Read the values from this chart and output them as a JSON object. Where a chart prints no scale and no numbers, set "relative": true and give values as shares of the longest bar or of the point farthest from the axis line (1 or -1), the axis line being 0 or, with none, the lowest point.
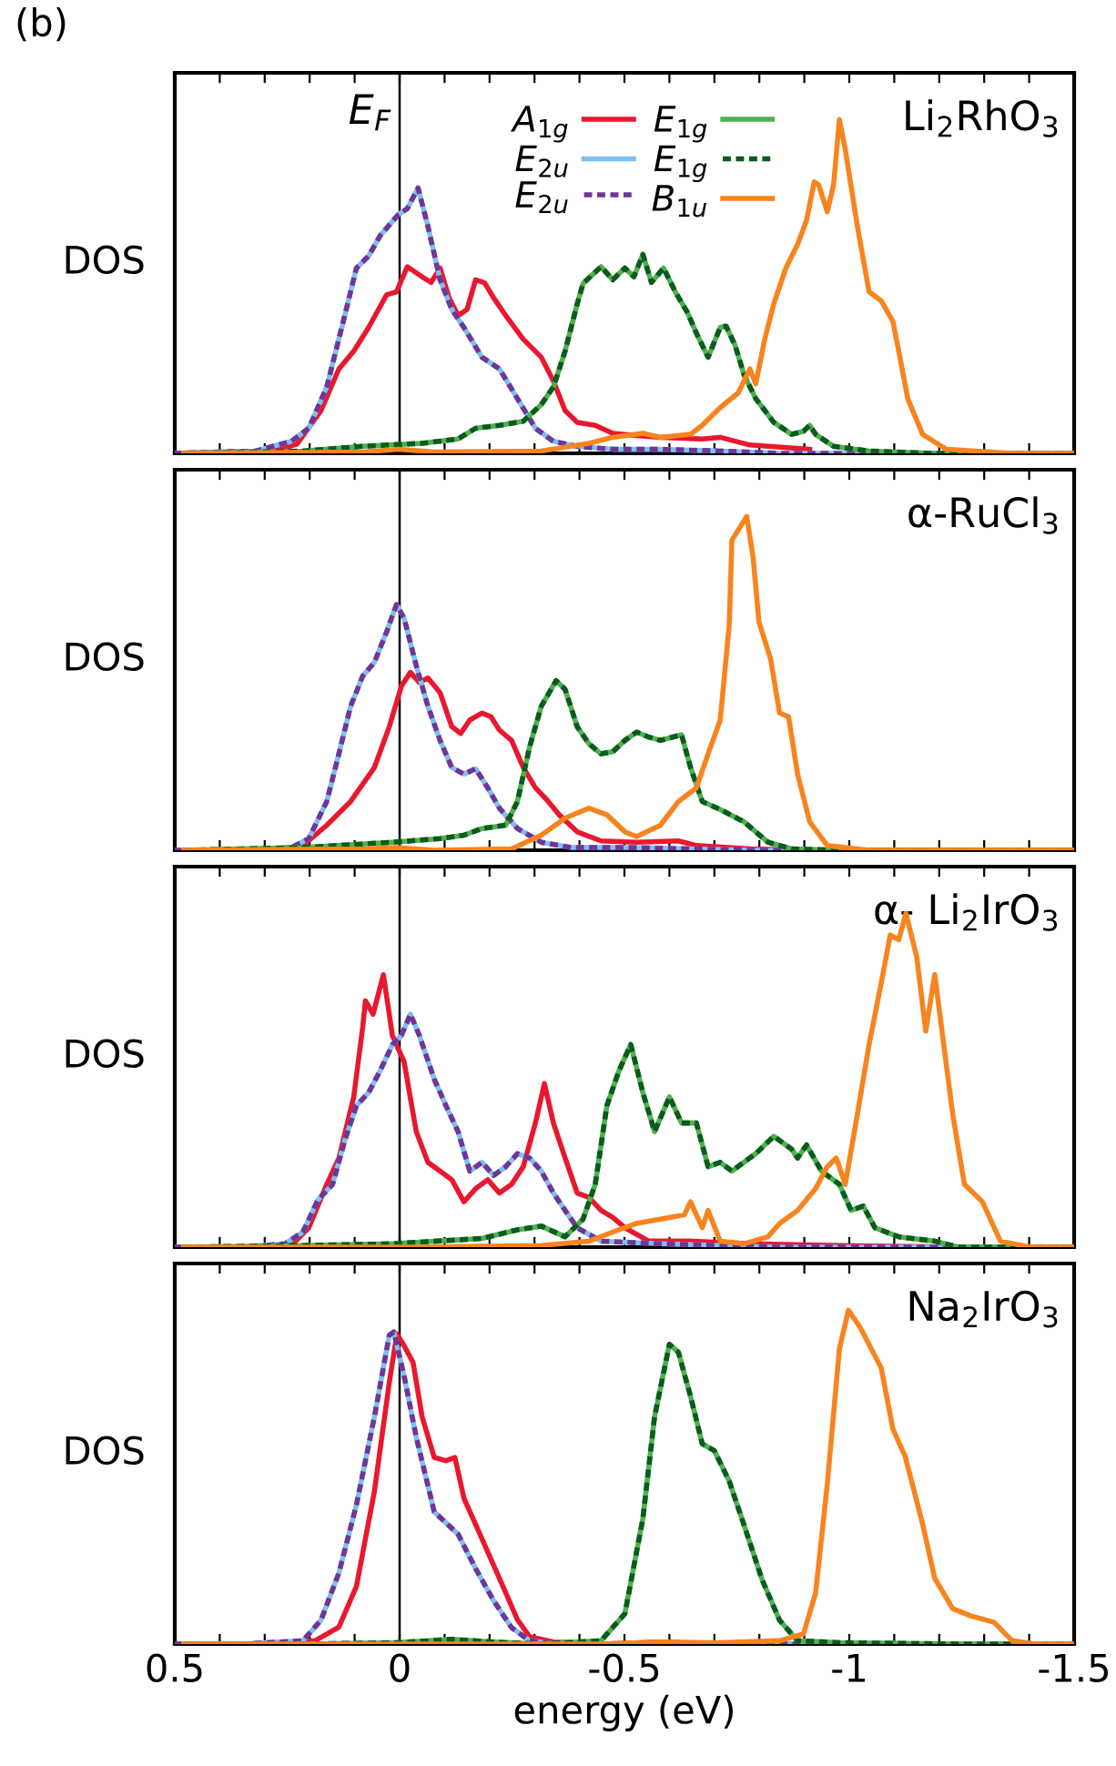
{
  "chart_data": [
    {
      "type": "line",
      "relative": true,
      "ylabel": "DOS",
      "annotations": [
        "(b)"
      ],
      "subtitle": "Li$_{2}$RhO$_{3}$",
      "legend": "top",
      "tick_labels": false,
      "xlim": [
        0.5,
        -1.5
      ],
      "xticks": [
        0.5,
        {
          "value": 0.4,
          "label": null
        },
        {
          "value": 0.3,
          "label": null
        },
        {
          "value": 0.2,
          "label": null
        },
        {
          "value": 0.1,
          "label": null
        },
        0,
        {
          "value": -0.1,
          "label": null
        },
        {
          "value": -0.2,
          "label": null
        },
        {
          "value": -0.3,
          "label": null
        },
        {
          "value": -0.4,
          "label": null
        },
        -0.5,
        {
          "value": -0.6,
          "label": null
        },
        {
          "value": -0.7,
          "label": null
        },
        {
          "value": -0.8,
          "label": null
        },
        {
          "value": -0.9,
          "label": null
        },
        -1,
        {
          "value": -1.1,
          "label": null
        },
        {
          "value": -1.2,
          "label": null
        },
        {
          "value": -1.3,
          "label": null
        },
        {
          "value": -1.4,
          "label": null
        },
        -1.5
      ],
      "ref_lines": [
        {
          "axis": "x",
          "value": 0,
          "label": "E$_{F}$",
          "color": "#000000"
        }
      ],
      "series": [
        {
          "name": "A$_{1g}$",
          "color": "#e8182e",
          "line_style": "solid",
          "x": [
            0.5,
            0.281,
            0.228,
            0.175,
            0.135,
            0.102,
            0.069,
            0.029,
            0.007,
            -0.017,
            -0.05,
            -0.07,
            -0.09,
            -0.11,
            -0.13,
            -0.15,
            -0.169,
            -0.189,
            -0.209,
            -0.236,
            -0.275,
            -0.315,
            -0.342,
            -0.368,
            -0.395,
            -0.435,
            -0.474,
            -0.527,
            -0.58,
            -0.673,
            -0.713,
            -0.779,
            -0.912
          ],
          "values": [
            0,
            0.007,
            0.028,
            0.128,
            0.253,
            0.306,
            0.377,
            0.475,
            0.484,
            0.559,
            0.529,
            0.512,
            0.555,
            0.466,
            0.413,
            0.431,
            0.52,
            0.511,
            0.466,
            0.413,
            0.342,
            0.288,
            0.217,
            0.128,
            0.093,
            0.084,
            0.06,
            0.053,
            0.048,
            0.043,
            0.048,
            0.025,
            0.012
          ]
        },
        {
          "name": "E$_{2u}$",
          "color": "#80bfea",
          "line_style": "solid",
          "x": [
            0.5,
            0.32,
            0.241,
            0.202,
            0.162,
            0.122,
            0.096,
            0.069,
            0.043,
            0.003,
            -0.017,
            -0.041,
            -0.063,
            -0.09,
            -0.116,
            -0.143,
            -0.183,
            -0.222,
            -0.262,
            -0.302,
            -0.342,
            -0.395,
            -0.474,
            -0.58,
            -0.713,
            -0.845,
            -1.5
          ],
          "values": [
            0,
            0.007,
            0.036,
            0.075,
            0.199,
            0.413,
            0.555,
            0.591,
            0.653,
            0.715,
            0.733,
            0.795,
            0.68,
            0.52,
            0.431,
            0.377,
            0.288,
            0.253,
            0.164,
            0.075,
            0.036,
            0.021,
            0.012,
            0.012,
            0.007,
            0,
            0
          ]
        },
        {
          "name": "E$_{2u}$",
          "color": "#6f3598",
          "line_style": "dotted",
          "x": [
            0.5,
            0.32,
            0.241,
            0.202,
            0.162,
            0.122,
            0.096,
            0.069,
            0.043,
            0.003,
            -0.017,
            -0.041,
            -0.063,
            -0.09,
            -0.116,
            -0.143,
            -0.183,
            -0.222,
            -0.262,
            -0.302,
            -0.342,
            -0.395,
            -0.474,
            -0.58,
            -0.713,
            -0.845,
            -1.5
          ],
          "values": [
            0,
            0.007,
            0.036,
            0.075,
            0.199,
            0.413,
            0.555,
            0.591,
            0.653,
            0.715,
            0.733,
            0.795,
            0.68,
            0.52,
            0.431,
            0.377,
            0.288,
            0.253,
            0.164,
            0.075,
            0.036,
            0.021,
            0.012,
            0.012,
            0.007,
            0,
            0
          ]
        },
        {
          "name": "E$_{1g}$",
          "color": "#4fb04f",
          "line_style": "solid",
          "x": [
            0.48,
            0.215,
            0.082,
            -0.05,
            -0.13,
            -0.169,
            -0.222,
            -0.275,
            -0.315,
            -0.342,
            -0.368,
            -0.395,
            -0.408,
            -0.448,
            -0.474,
            -0.501,
            -0.521,
            -0.541,
            -0.56,
            -0.587,
            -0.613,
            -0.64,
            -0.66,
            -0.686,
            -0.713,
            -0.726,
            -0.746,
            -0.766,
            -0.792,
            -0.832,
            -0.872,
            -0.898,
            -0.912,
            -0.925,
            -0.965,
            -1.044,
            -1.177,
            -1.5
          ],
          "values": [
            0,
            0.007,
            0.021,
            0.03,
            0.043,
            0.075,
            0.084,
            0.096,
            0.146,
            0.199,
            0.306,
            0.448,
            0.509,
            0.559,
            0.52,
            0.555,
            0.529,
            0.596,
            0.512,
            0.555,
            0.484,
            0.422,
            0.36,
            0.288,
            0.377,
            0.381,
            0.324,
            0.235,
            0.164,
            0.093,
            0.057,
            0.066,
            0.084,
            0.057,
            0.021,
            0.007,
            0,
            0
          ]
        },
        {
          "name": "E$_{1g}$",
          "color": "#0b5a1e",
          "line_style": "dotted",
          "x": [
            0.48,
            0.215,
            0.082,
            -0.05,
            -0.13,
            -0.169,
            -0.222,
            -0.275,
            -0.315,
            -0.342,
            -0.368,
            -0.395,
            -0.408,
            -0.448,
            -0.474,
            -0.501,
            -0.521,
            -0.541,
            -0.56,
            -0.587,
            -0.613,
            -0.64,
            -0.66,
            -0.686,
            -0.713,
            -0.726,
            -0.746,
            -0.766,
            -0.792,
            -0.832,
            -0.872,
            -0.898,
            -0.912,
            -0.925,
            -0.965,
            -1.044,
            -1.177,
            -1.5
          ],
          "values": [
            0,
            0.007,
            0.021,
            0.03,
            0.043,
            0.075,
            0.084,
            0.096,
            0.146,
            0.199,
            0.306,
            0.448,
            0.509,
            0.559,
            0.52,
            0.555,
            0.529,
            0.596,
            0.512,
            0.555,
            0.484,
            0.422,
            0.36,
            0.288,
            0.377,
            0.381,
            0.324,
            0.235,
            0.164,
            0.093,
            0.057,
            0.066,
            0.084,
            0.057,
            0.021,
            0.007,
            0,
            0
          ]
        },
        {
          "name": "B$_{1u}$",
          "color": "#f7841f",
          "line_style": "solid",
          "x": [
            0.48,
            0.082,
            0.003,
            -0.077,
            -0.315,
            -0.421,
            -0.474,
            -0.541,
            -0.58,
            -0.647,
            -0.673,
            -0.713,
            -0.753,
            -0.779,
            -0.792,
            -0.812,
            -0.832,
            -0.859,
            -0.885,
            -0.905,
            -0.922,
            -0.932,
            -0.951,
            -0.965,
            -0.978,
            -0.991,
            -1.018,
            -1.044,
            -1.071,
            -1.097,
            -1.11,
            -1.13,
            -1.163,
            -1.216,
            -1.362,
            -1.5
          ],
          "values": [
            0,
            0.004,
            0.012,
            0.004,
            0.007,
            0.03,
            0.048,
            0.06,
            0.048,
            0.057,
            0.084,
            0.137,
            0.181,
            0.253,
            0.208,
            0.342,
            0.448,
            0.555,
            0.626,
            0.698,
            0.813,
            0.804,
            0.724,
            0.804,
            1.0,
            0.911,
            0.68,
            0.484,
            0.457,
            0.395,
            0.306,
            0.164,
            0.057,
            0.012,
            0,
            0
          ]
        }
      ]
    },
    {
      "type": "line",
      "relative": true,
      "ylabel": "DOS",
      "subtitle": "α-RuCl$_{3}$",
      "tick_labels": false,
      "xlim": [
        0.5,
        -1.5
      ],
      "xticks": [
        0.5,
        {
          "value": 0.4,
          "label": null
        },
        {
          "value": 0.3,
          "label": null
        },
        {
          "value": 0.2,
          "label": null
        },
        {
          "value": 0.1,
          "label": null
        },
        0,
        {
          "value": -0.1,
          "label": null
        },
        {
          "value": -0.2,
          "label": null
        },
        {
          "value": -0.3,
          "label": null
        },
        {
          "value": -0.4,
          "label": null
        },
        -0.5,
        {
          "value": -0.6,
          "label": null
        },
        {
          "value": -0.7,
          "label": null
        },
        {
          "value": -0.8,
          "label": null
        },
        {
          "value": -0.9,
          "label": null
        },
        -1,
        {
          "value": -1.1,
          "label": null
        },
        {
          "value": -1.2,
          "label": null
        },
        {
          "value": -1.3,
          "label": null
        },
        {
          "value": -1.4,
          "label": null
        },
        -1.5
      ],
      "ref_lines": [
        {
          "axis": "x",
          "value": 0,
          "color": "#000000"
        }
      ],
      "series": [
        {
          "color": "#e8182e",
          "line_style": "solid",
          "x": [
            0.5,
            0.281,
            0.215,
            0.162,
            0.109,
            0.056,
            0.023,
            -0.004,
            -0.024,
            -0.044,
            -0.063,
            -0.09,
            -0.116,
            -0.136,
            -0.156,
            -0.183,
            -0.203,
            -0.222,
            -0.249,
            -0.275,
            -0.302,
            -0.328,
            -0.355,
            -0.395,
            -0.448,
            -0.527,
            -0.62,
            -0.66,
            -0.779,
            -0.912,
            -1.5
          ],
          "values": [
            0,
            0,
            0.014,
            0.075,
            0.146,
            0.248,
            0.37,
            0.492,
            0.533,
            0.502,
            0.516,
            0.472,
            0.37,
            0.35,
            0.39,
            0.411,
            0.4,
            0.36,
            0.329,
            0.248,
            0.187,
            0.15,
            0.106,
            0.055,
            0.028,
            0.024,
            0.028,
            0.014,
            0.004,
            0,
            0
          ]
        },
        {
          "color": "#80bfea",
          "line_style": "solid",
          "x": [
            0.5,
            0.347,
            0.241,
            0.202,
            0.162,
            0.135,
            0.109,
            0.082,
            0.056,
            0.029,
            0.007,
            -0.01,
            -0.037,
            -0.063,
            -0.09,
            -0.116,
            -0.143,
            -0.169,
            -0.196,
            -0.222,
            -0.262,
            -0.315,
            -0.381,
            -0.514,
            -0.647,
            -0.779,
            -1.5
          ],
          "values": [
            0,
            0,
            0.008,
            0.035,
            0.146,
            0.289,
            0.431,
            0.522,
            0.563,
            0.654,
            0.736,
            0.695,
            0.553,
            0.431,
            0.329,
            0.248,
            0.228,
            0.244,
            0.187,
            0.126,
            0.065,
            0.024,
            0.008,
            0.008,
            0.004,
            0,
            0
          ]
        },
        {
          "color": "#6f3598",
          "line_style": "dotted",
          "x": [
            0.5,
            0.347,
            0.241,
            0.202,
            0.162,
            0.135,
            0.109,
            0.082,
            0.056,
            0.029,
            0.007,
            -0.01,
            -0.037,
            -0.063,
            -0.09,
            -0.116,
            -0.143,
            -0.169,
            -0.196,
            -0.222,
            -0.262,
            -0.315,
            -0.381,
            -0.514,
            -0.647,
            -0.779,
            -1.5
          ],
          "values": [
            0,
            0,
            0.008,
            0.035,
            0.146,
            0.289,
            0.431,
            0.522,
            0.563,
            0.654,
            0.736,
            0.695,
            0.553,
            0.431,
            0.329,
            0.248,
            0.228,
            0.244,
            0.187,
            0.126,
            0.065,
            0.024,
            0.008,
            0.008,
            0.004,
            0,
            0
          ]
        },
        {
          "color": "#4fb04f",
          "line_style": "solid",
          "x": [
            0.48,
            0.215,
            0.016,
            -0.09,
            -0.143,
            -0.183,
            -0.236,
            -0.262,
            -0.289,
            -0.315,
            -0.348,
            -0.368,
            -0.395,
            -0.421,
            -0.448,
            -0.474,
            -0.501,
            -0.527,
            -0.554,
            -0.58,
            -0.607,
            -0.627,
            -0.647,
            -0.673,
            -0.713,
            -0.766,
            -0.819,
            -0.872,
            -0.978,
            -1.5
          ],
          "values": [
            0,
            0.008,
            0.024,
            0.035,
            0.045,
            0.065,
            0.075,
            0.146,
            0.309,
            0.431,
            0.508,
            0.482,
            0.37,
            0.319,
            0.289,
            0.295,
            0.329,
            0.354,
            0.339,
            0.329,
            0.339,
            0.346,
            0.248,
            0.146,
            0.122,
            0.085,
            0.024,
            0.004,
            0,
            0
          ]
        },
        {
          "color": "#0b5a1e",
          "line_style": "dotted",
          "x": [
            0.48,
            0.215,
            0.016,
            -0.09,
            -0.143,
            -0.183,
            -0.236,
            -0.262,
            -0.289,
            -0.315,
            -0.348,
            -0.368,
            -0.395,
            -0.421,
            -0.448,
            -0.474,
            -0.501,
            -0.527,
            -0.554,
            -0.58,
            -0.607,
            -0.627,
            -0.647,
            -0.673,
            -0.713,
            -0.766,
            -0.819,
            -0.872,
            -0.978,
            -1.5
          ],
          "values": [
            0,
            0.008,
            0.024,
            0.035,
            0.045,
            0.065,
            0.075,
            0.146,
            0.309,
            0.431,
            0.508,
            0.482,
            0.37,
            0.319,
            0.289,
            0.295,
            0.329,
            0.354,
            0.339,
            0.329,
            0.339,
            0.346,
            0.248,
            0.146,
            0.122,
            0.085,
            0.024,
            0.004,
            0,
            0
          ]
        },
        {
          "color": "#f7841f",
          "line_style": "solid",
          "x": [
            0.48,
            0.082,
            0.007,
            -0.077,
            -0.249,
            -0.315,
            -0.368,
            -0.421,
            -0.461,
            -0.501,
            -0.527,
            -0.58,
            -0.62,
            -0.66,
            -0.686,
            -0.713,
            -0.733,
            -0.739,
            -0.772,
            -0.786,
            -0.799,
            -0.825,
            -0.845,
            -0.865,
            -0.885,
            -0.912,
            -0.951,
            -1.044,
            -1.5
          ],
          "values": [
            0,
            0.004,
            0.008,
            0,
            0.004,
            0.045,
            0.096,
            0.126,
            0.106,
            0.055,
            0.041,
            0.075,
            0.146,
            0.187,
            0.289,
            0.39,
            0.675,
            0.929,
            1.0,
            0.878,
            0.685,
            0.573,
            0.411,
            0.4,
            0.228,
            0.085,
            0.014,
            0,
            0
          ]
        }
      ]
    },
    {
      "type": "line",
      "relative": true,
      "ylabel": "DOS",
      "subtitle": "α- Li$_{2}$IrO$_{3}$",
      "tick_labels": false,
      "xlim": [
        0.5,
        -1.5
      ],
      "xticks": [
        0.5,
        {
          "value": 0.4,
          "label": null
        },
        {
          "value": 0.3,
          "label": null
        },
        {
          "value": 0.2,
          "label": null
        },
        {
          "value": 0.1,
          "label": null
        },
        0,
        {
          "value": -0.1,
          "label": null
        },
        {
          "value": -0.2,
          "label": null
        },
        {
          "value": -0.3,
          "label": null
        },
        {
          "value": -0.4,
          "label": null
        },
        -0.5,
        {
          "value": -0.6,
          "label": null
        },
        {
          "value": -0.7,
          "label": null
        },
        {
          "value": -0.8,
          "label": null
        },
        {
          "value": -0.9,
          "label": null
        },
        -1,
        {
          "value": -1.1,
          "label": null
        },
        {
          "value": -1.2,
          "label": null
        },
        {
          "value": -1.3,
          "label": null
        },
        {
          "value": -1.4,
          "label": null
        },
        -1.5
      ],
      "ref_lines": [
        {
          "axis": "x",
          "value": 0,
          "color": "#000000"
        }
      ],
      "series": [
        {
          "color": "#e8182e",
          "line_style": "solid",
          "x": [
            0.5,
            0.347,
            0.241,
            0.202,
            0.162,
            0.135,
            0.102,
            0.082,
            0.076,
            0.059,
            0.036,
            0.016,
            -0.01,
            -0.037,
            -0.063,
            -0.09,
            -0.116,
            -0.143,
            -0.169,
            -0.196,
            -0.222,
            -0.249,
            -0.275,
            -0.302,
            -0.322,
            -0.342,
            -0.368,
            -0.395,
            -0.421,
            -0.448,
            -0.474,
            -0.501,
            -0.554,
            -0.647,
            -0.779,
            -0.978,
            -1.243,
            -1.5
          ],
          "values": [
            0,
            0,
            0.005,
            0.058,
            0.188,
            0.267,
            0.45,
            0.66,
            0.738,
            0.698,
            0.816,
            0.634,
            0.555,
            0.346,
            0.254,
            0.228,
            0.202,
            0.136,
            0.175,
            0.202,
            0.162,
            0.188,
            0.241,
            0.372,
            0.49,
            0.372,
            0.267,
            0.162,
            0.149,
            0.11,
            0.089,
            0.058,
            0.018,
            0.018,
            0.01,
            0.005,
            0,
            0
          ]
        },
        {
          "color": "#80bfea",
          "line_style": "solid",
          "x": [
            0.5,
            0.347,
            0.255,
            0.215,
            0.182,
            0.149,
            0.122,
            0.096,
            0.069,
            0.043,
            0.016,
            -0.004,
            -0.024,
            -0.044,
            -0.077,
            -0.103,
            -0.13,
            -0.156,
            -0.183,
            -0.209,
            -0.236,
            -0.262,
            -0.289,
            -0.315,
            -0.342,
            -0.368,
            -0.395,
            -0.448,
            -0.58,
            -0.713,
            -0.845,
            -1.5
          ],
          "values": [
            0,
            0,
            0.01,
            0.045,
            0.141,
            0.188,
            0.319,
            0.424,
            0.463,
            0.529,
            0.607,
            0.634,
            0.698,
            0.634,
            0.503,
            0.424,
            0.346,
            0.228,
            0.254,
            0.215,
            0.241,
            0.28,
            0.267,
            0.228,
            0.162,
            0.11,
            0.058,
            0.018,
            0.01,
            0.005,
            0,
            0
          ]
        },
        {
          "color": "#6f3598",
          "line_style": "dotted",
          "x": [
            0.5,
            0.347,
            0.255,
            0.215,
            0.182,
            0.149,
            0.122,
            0.096,
            0.069,
            0.043,
            0.016,
            -0.004,
            -0.024,
            -0.044,
            -0.077,
            -0.103,
            -0.13,
            -0.156,
            -0.183,
            -0.209,
            -0.236,
            -0.262,
            -0.289,
            -0.315,
            -0.342,
            -0.368,
            -0.395,
            -0.448,
            -0.58,
            -0.713,
            -0.845,
            -1.5
          ],
          "values": [
            0,
            0,
            0.01,
            0.045,
            0.141,
            0.188,
            0.319,
            0.424,
            0.463,
            0.529,
            0.607,
            0.634,
            0.698,
            0.634,
            0.503,
            0.424,
            0.346,
            0.228,
            0.254,
            0.215,
            0.241,
            0.28,
            0.267,
            0.228,
            0.162,
            0.11,
            0.058,
            0.018,
            0.01,
            0.005,
            0,
            0
          ]
        },
        {
          "color": "#4fb04f",
          "line_style": "solid",
          "x": [
            0.48,
            0.215,
            0.016,
            -0.183,
            -0.262,
            -0.315,
            -0.368,
            -0.408,
            -0.435,
            -0.461,
            -0.488,
            -0.514,
            -0.541,
            -0.567,
            -0.6,
            -0.627,
            -0.66,
            -0.686,
            -0.713,
            -0.739,
            -0.792,
            -0.832,
            -0.872,
            -0.885,
            -0.905,
            -0.938,
            -0.978,
            -1.004,
            -1.031,
            -1.057,
            -1.11,
            -1.19,
            -1.243,
            -1.5
          ],
          "values": [
            0,
            0.005,
            0.01,
            0.026,
            0.052,
            0.063,
            0.031,
            0.084,
            0.188,
            0.424,
            0.529,
            0.607,
            0.463,
            0.346,
            0.45,
            0.372,
            0.372,
            0.241,
            0.254,
            0.228,
            0.28,
            0.332,
            0.293,
            0.267,
            0.306,
            0.228,
            0.188,
            0.11,
            0.123,
            0.058,
            0.031,
            0.018,
            0,
            0
          ]
        },
        {
          "color": "#0b5a1e",
          "line_style": "dotted",
          "x": [
            0.48,
            0.215,
            0.016,
            -0.183,
            -0.262,
            -0.315,
            -0.368,
            -0.408,
            -0.435,
            -0.461,
            -0.488,
            -0.514,
            -0.541,
            -0.567,
            -0.6,
            -0.627,
            -0.66,
            -0.686,
            -0.713,
            -0.739,
            -0.792,
            -0.832,
            -0.872,
            -0.885,
            -0.905,
            -0.938,
            -0.978,
            -1.004,
            -1.031,
            -1.057,
            -1.11,
            -1.19,
            -1.243,
            -1.5
          ],
          "values": [
            0,
            0.005,
            0.01,
            0.026,
            0.052,
            0.063,
            0.031,
            0.084,
            0.188,
            0.424,
            0.529,
            0.607,
            0.463,
            0.346,
            0.45,
            0.372,
            0.372,
            0.241,
            0.254,
            0.228,
            0.28,
            0.332,
            0.293,
            0.267,
            0.306,
            0.228,
            0.188,
            0.11,
            0.123,
            0.058,
            0.031,
            0.018,
            0,
            0
          ]
        },
        {
          "color": "#f7841f",
          "line_style": "solid",
          "x": [
            0.48,
            -0.05,
            -0.315,
            -0.421,
            -0.474,
            -0.527,
            -0.58,
            -0.633,
            -0.647,
            -0.673,
            -0.686,
            -0.713,
            -0.766,
            -0.819,
            -0.845,
            -0.885,
            -0.925,
            -0.951,
            -0.971,
            -0.991,
            -1.018,
            -1.044,
            -1.071,
            -1.091,
            -1.11,
            -1.126,
            -1.15,
            -1.17,
            -1.19,
            -1.21,
            -1.23,
            -1.256,
            -1.296,
            -1.336,
            -1.402,
            -1.5
          ],
          "values": [
            0,
            0,
            0.005,
            0.018,
            0.045,
            0.071,
            0.084,
            0.097,
            0.136,
            0.058,
            0.11,
            0.018,
            0.01,
            0.031,
            0.071,
            0.11,
            0.175,
            0.241,
            0.267,
            0.188,
            0.398,
            0.607,
            0.791,
            0.935,
            0.921,
            1.0,
            0.869,
            0.647,
            0.817,
            0.607,
            0.398,
            0.188,
            0.136,
            0.018,
            0,
            0
          ]
        }
      ]
    },
    {
      "type": "line",
      "relative": true,
      "ylabel": "DOS",
      "xlabel": "energy (eV)",
      "subtitle": "Na$_{2}$IrO$_{3}$",
      "tick_labels": "x",
      "xlim": [
        0.5,
        -1.5
      ],
      "xticks": [
        0.5,
        {
          "value": 0.4,
          "label": null
        },
        {
          "value": 0.3,
          "label": null
        },
        {
          "value": 0.2,
          "label": null
        },
        {
          "value": 0.1,
          "label": null
        },
        0,
        {
          "value": -0.1,
          "label": null
        },
        {
          "value": -0.2,
          "label": null
        },
        {
          "value": -0.3,
          "label": null
        },
        {
          "value": -0.4,
          "label": null
        },
        -0.5,
        {
          "value": -0.6,
          "label": null
        },
        {
          "value": -0.7,
          "label": null
        },
        {
          "value": -0.8,
          "label": null
        },
        {
          "value": -0.9,
          "label": null
        },
        -1,
        {
          "value": -1.1,
          "label": null
        },
        {
          "value": -1.2,
          "label": null
        },
        {
          "value": -1.3,
          "label": null
        },
        {
          "value": -1.4,
          "label": null
        },
        -1.5
      ],
      "ref_lines": [
        {
          "axis": "x",
          "value": 0,
          "color": "#000000"
        }
      ],
      "series": [
        {
          "color": "#e8182e",
          "line_style": "solid",
          "x": [
            0.5,
            0.281,
            0.188,
            0.135,
            0.096,
            0.056,
            0.023,
            0.006,
            -0.01,
            -0.03,
            -0.05,
            -0.077,
            -0.103,
            -0.123,
            -0.143,
            -0.169,
            -0.209,
            -0.236,
            -0.262,
            -0.289,
            -0.342,
            -0.448,
            -0.58,
            -0.713,
            -1.5
          ],
          "values": [
            0,
            0,
            0.01,
            0.051,
            0.173,
            0.458,
            0.783,
            0.929,
            0.894,
            0.843,
            0.681,
            0.559,
            0.549,
            0.559,
            0.437,
            0.358,
            0.236,
            0.154,
            0.073,
            0.022,
            0.006,
            0,
            0.006,
            0,
            0
          ]
        },
        {
          "color": "#80bfea",
          "line_style": "solid",
          "x": [
            0.5,
            0.347,
            0.215,
            0.175,
            0.135,
            0.096,
            0.056,
            0.023,
            0.013,
            -0.01,
            -0.037,
            -0.077,
            -0.13,
            -0.169,
            -0.209,
            -0.249,
            -0.289,
            -0.342,
            -1.5
          ],
          "values": [
            0,
            0,
            0.01,
            0.071,
            0.213,
            0.417,
            0.681,
            0.925,
            0.935,
            0.803,
            0.62,
            0.396,
            0.329,
            0.226,
            0.13,
            0.049,
            0.01,
            0,
            0
          ]
        },
        {
          "color": "#6f3598",
          "line_style": "dotted",
          "x": [
            0.5,
            0.347,
            0.215,
            0.175,
            0.135,
            0.096,
            0.056,
            0.023,
            0.013,
            -0.01,
            -0.037,
            -0.077,
            -0.13,
            -0.169,
            -0.209,
            -0.249,
            -0.289,
            -0.342,
            -1.5
          ],
          "values": [
            0,
            0,
            0.01,
            0.071,
            0.213,
            0.417,
            0.681,
            0.925,
            0.935,
            0.803,
            0.62,
            0.396,
            0.329,
            0.226,
            0.13,
            0.049,
            0.01,
            0,
            0
          ]
        },
        {
          "color": "#4fb04f",
          "line_style": "solid",
          "x": [
            0.48,
            0.215,
            0.007,
            -0.116,
            -0.209,
            -0.315,
            -0.448,
            -0.501,
            -0.541,
            -0.567,
            -0.6,
            -0.62,
            -0.647,
            -0.673,
            -0.7,
            -0.733,
            -0.766,
            -0.806,
            -0.845,
            -0.885,
            -0.978,
            -1.243,
            -1.5
          ],
          "values": [
            0,
            0,
            0.004,
            0.014,
            0.006,
            0,
            0.01,
            0.091,
            0.376,
            0.681,
            0.898,
            0.874,
            0.742,
            0.6,
            0.579,
            0.488,
            0.356,
            0.193,
            0.071,
            0.01,
            0.004,
            0,
            0
          ]
        },
        {
          "color": "#0b5a1e",
          "line_style": "dotted",
          "x": [
            0.48,
            0.215,
            0.007,
            -0.116,
            -0.209,
            -0.315,
            -0.448,
            -0.501,
            -0.541,
            -0.567,
            -0.6,
            -0.62,
            -0.647,
            -0.673,
            -0.7,
            -0.733,
            -0.766,
            -0.806,
            -0.845,
            -0.885,
            -0.978,
            -1.243,
            -1.5
          ],
          "values": [
            0,
            0,
            0.004,
            0.014,
            0.006,
            0,
            0.01,
            0.091,
            0.376,
            0.681,
            0.898,
            0.874,
            0.742,
            0.6,
            0.579,
            0.488,
            0.356,
            0.193,
            0.071,
            0.01,
            0.004,
            0,
            0
          ]
        },
        {
          "color": "#f7841f",
          "line_style": "solid",
          "x": [
            0.48,
            -0.448,
            -0.58,
            -0.713,
            -0.845,
            -0.898,
            -0.925,
            -0.951,
            -0.978,
            -0.998,
            -1.024,
            -1.071,
            -1.097,
            -1.124,
            -1.163,
            -1.19,
            -1.23,
            -1.269,
            -1.322,
            -1.362,
            -1.415,
            -1.5
          ],
          "values": [
            0,
            0,
            0.006,
            0.004,
            0.01,
            0.03,
            0.152,
            0.478,
            0.884,
            1.0,
            0.949,
            0.827,
            0.644,
            0.563,
            0.36,
            0.197,
            0.106,
            0.085,
            0.065,
            0.01,
            0,
            0
          ]
        }
      ]
    }
  ]
}
